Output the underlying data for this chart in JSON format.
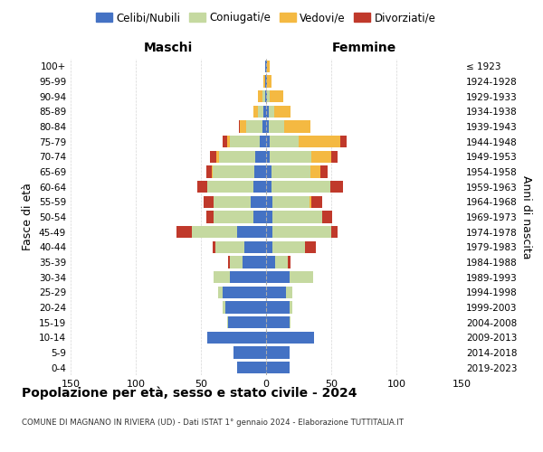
{
  "age_groups": [
    "0-4",
    "5-9",
    "10-14",
    "15-19",
    "20-24",
    "25-29",
    "30-34",
    "35-39",
    "40-44",
    "45-49",
    "50-54",
    "55-59",
    "60-64",
    "65-69",
    "70-74",
    "75-79",
    "80-84",
    "85-89",
    "90-94",
    "95-99",
    "100+"
  ],
  "birth_years": [
    "2019-2023",
    "2014-2018",
    "2009-2013",
    "2004-2008",
    "1999-2003",
    "1994-1998",
    "1989-1993",
    "1984-1988",
    "1979-1983",
    "1974-1978",
    "1969-1973",
    "1964-1968",
    "1959-1963",
    "1954-1958",
    "1949-1953",
    "1944-1948",
    "1939-1943",
    "1934-1938",
    "1929-1933",
    "1924-1928",
    "≤ 1923"
  ],
  "colors": {
    "celibe": "#4472c4",
    "coniugato": "#c5d9a0",
    "vedovo": "#f4b942",
    "divorziato": "#c0392b"
  },
  "maschi": {
    "celibe": [
      22,
      25,
      45,
      29,
      31,
      33,
      28,
      18,
      17,
      22,
      10,
      12,
      10,
      9,
      8,
      5,
      3,
      2,
      1,
      1,
      1
    ],
    "coniugato": [
      0,
      0,
      0,
      1,
      2,
      4,
      12,
      10,
      22,
      35,
      30,
      28,
      35,
      32,
      28,
      23,
      12,
      4,
      2,
      0,
      0
    ],
    "vedovo": [
      0,
      0,
      0,
      0,
      0,
      0,
      0,
      0,
      0,
      0,
      0,
      0,
      0,
      1,
      2,
      2,
      5,
      4,
      3,
      1,
      0
    ],
    "divorziato": [
      0,
      0,
      0,
      0,
      0,
      0,
      0,
      1,
      2,
      12,
      6,
      8,
      8,
      4,
      5,
      3,
      1,
      0,
      0,
      0,
      0
    ]
  },
  "femmine": {
    "nubile": [
      18,
      18,
      37,
      18,
      18,
      15,
      18,
      7,
      5,
      5,
      5,
      5,
      4,
      4,
      3,
      3,
      2,
      2,
      1,
      1,
      1
    ],
    "coniugata": [
      0,
      0,
      0,
      1,
      2,
      5,
      18,
      10,
      25,
      45,
      38,
      28,
      45,
      30,
      32,
      22,
      12,
      4,
      2,
      0,
      0
    ],
    "vedova": [
      0,
      0,
      0,
      0,
      0,
      0,
      0,
      0,
      0,
      0,
      0,
      2,
      0,
      8,
      15,
      32,
      20,
      13,
      10,
      3,
      2
    ],
    "divorziata": [
      0,
      0,
      0,
      0,
      0,
      0,
      0,
      2,
      8,
      5,
      8,
      8,
      10,
      5,
      5,
      5,
      0,
      0,
      0,
      0,
      0
    ]
  },
  "xlim": 150,
  "title": "Popolazione per età, sesso e stato civile - 2024",
  "subtitle": "COMUNE DI MAGNANO IN RIVIERA (UD) - Dati ISTAT 1° gennaio 2024 - Elaborazione TUTTITALIA.IT",
  "xlabel_left": "Maschi",
  "xlabel_right": "Femmine",
  "ylabel": "Fasce di età",
  "ylabel_right": "Anni di nascita",
  "legend_labels": [
    "Celibi/Nubili",
    "Coniugati/e",
    "Vedovi/e",
    "Divorziati/e"
  ],
  "bg_color": "#ffffff",
  "grid_color": "#cccccc"
}
